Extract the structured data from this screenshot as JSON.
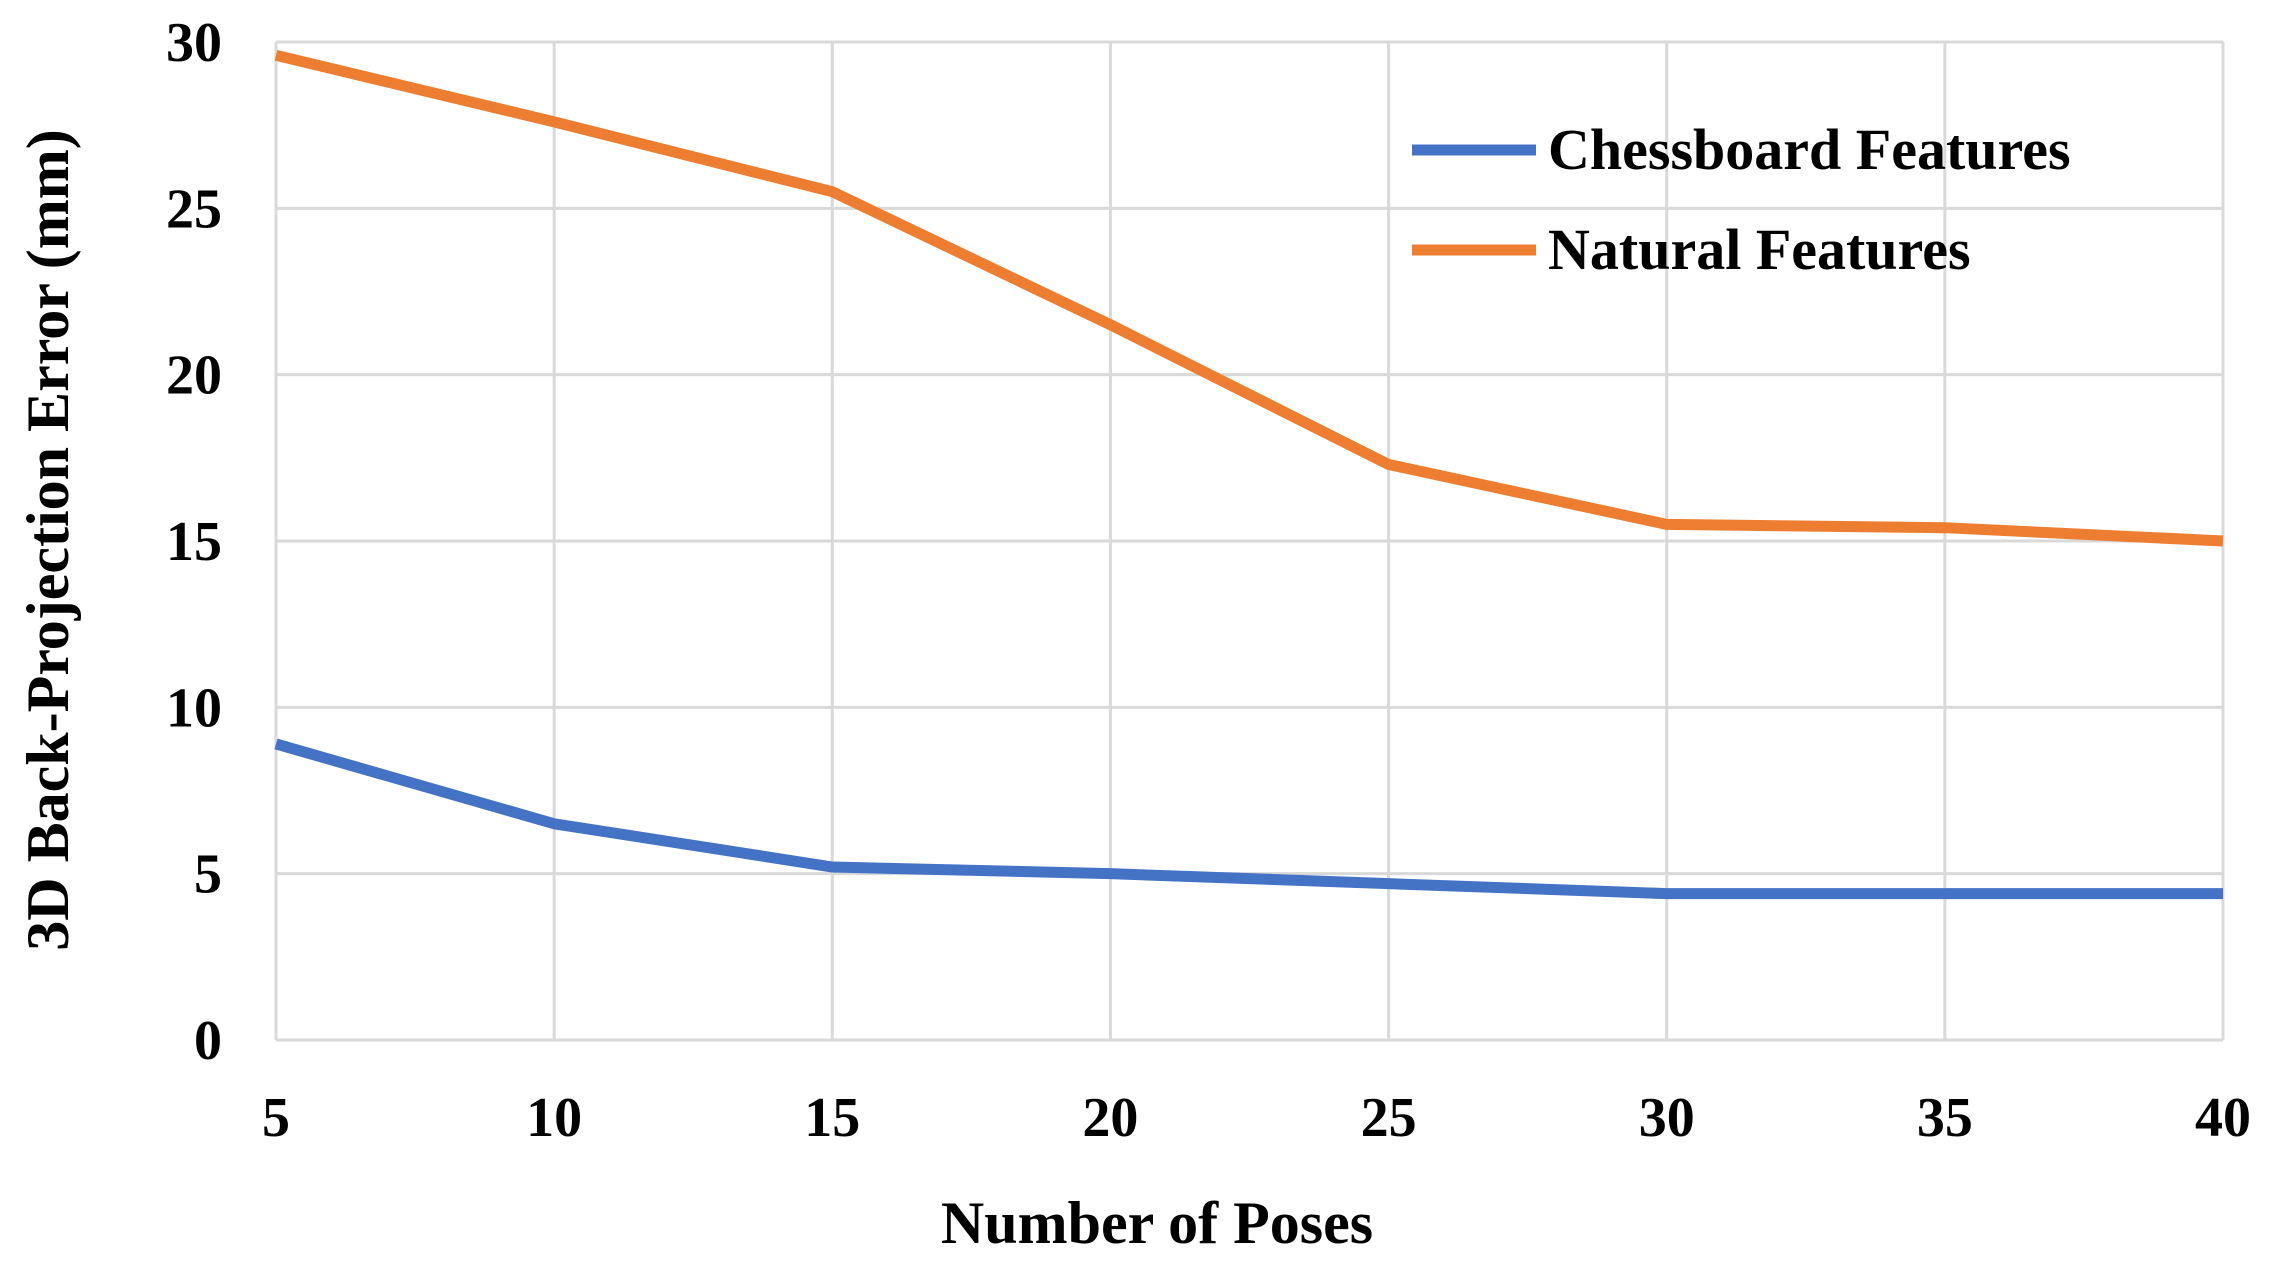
{
  "chart_data": {
    "type": "line",
    "title": "",
    "xlabel": "Number of Poses",
    "ylabel": "3D Back-Projection Error (mm)",
    "x": [
      5,
      10,
      15,
      20,
      25,
      30,
      35,
      40
    ],
    "x_tick_labels": [
      "5",
      "10",
      "15",
      "20",
      "25",
      "30",
      "35",
      "40"
    ],
    "y_tick_labels": [
      "0",
      "5",
      "10",
      "15",
      "20",
      "25",
      "30"
    ],
    "y_ticks": [
      0,
      5,
      10,
      15,
      20,
      25,
      30
    ],
    "xlim": [
      5,
      40
    ],
    "ylim": [
      0,
      30
    ],
    "grid": true,
    "legend_position": "top-right",
    "series": [
      {
        "name": "Chessboard Features",
        "color": "#4472c4",
        "values": [
          8.9,
          6.5,
          5.2,
          5.0,
          4.7,
          4.4,
          4.4,
          4.4
        ]
      },
      {
        "name": "Natural Features",
        "color": "#ed7d31",
        "values": [
          29.6,
          27.6,
          25.5,
          21.5,
          17.3,
          15.5,
          15.4,
          15.0
        ]
      }
    ]
  }
}
